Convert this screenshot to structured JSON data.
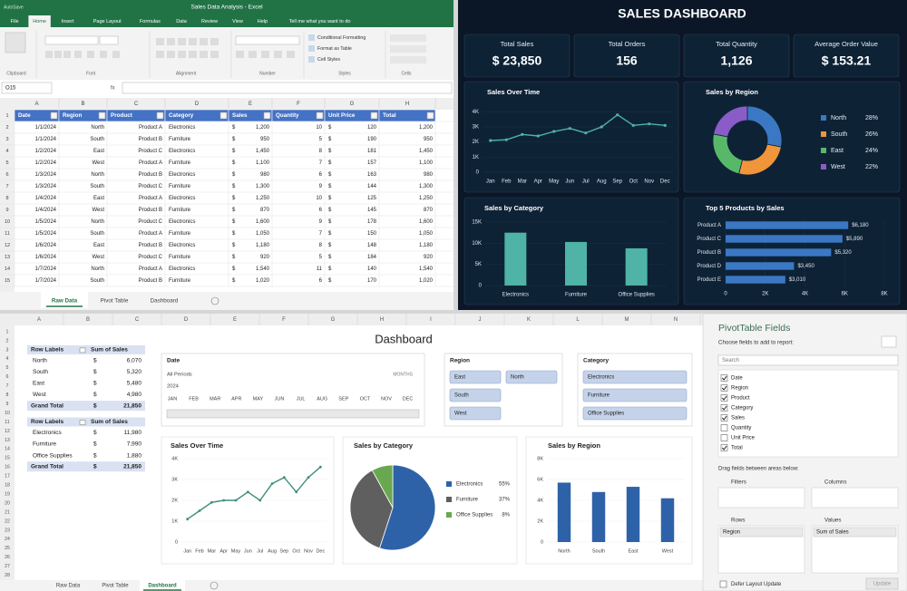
{
  "excel": {
    "title": "Sales Data Analysis - Excel",
    "autosave": "AutoSave",
    "tabs": [
      "File",
      "Home",
      "Insert",
      "Page Layout",
      "Formulas",
      "Data",
      "Review",
      "View",
      "Help"
    ],
    "tell_me": "Tell me what you want to do",
    "ribbon_groups": [
      "Clipboard",
      "Font",
      "Alignment",
      "Number",
      "Styles",
      "Cells"
    ],
    "styles_buttons": [
      "Conditional Formatting",
      "Format as Table",
      "Cell Styles"
    ],
    "name_box": "O15",
    "fx": "fx",
    "columns": [
      "A",
      "B",
      "C",
      "D",
      "E",
      "F",
      "G",
      "H"
    ],
    "row_numbers": [
      1,
      2,
      3,
      4,
      5,
      6,
      7,
      8,
      9,
      10,
      11,
      12,
      13,
      14,
      15
    ],
    "currency": "$",
    "headers": [
      "Date",
      "Region",
      "Product",
      "Category",
      "Sales",
      "Quantity",
      "Unit Price",
      "Total"
    ],
    "rows": [
      [
        "1/1/2024",
        "North",
        "Product A",
        "Electronics",
        "1,200",
        "10",
        "120",
        "1,200"
      ],
      [
        "1/1/2024",
        "South",
        "Product B",
        "Furniture",
        "950",
        "5",
        "190",
        "950"
      ],
      [
        "1/2/2024",
        "East",
        "Product C",
        "Electronics",
        "1,450",
        "8",
        "181",
        "1,450"
      ],
      [
        "1/2/2024",
        "West",
        "Product A",
        "Furniture",
        "1,100",
        "7",
        "157",
        "1,100"
      ],
      [
        "1/3/2024",
        "North",
        "Product B",
        "Electronics",
        "980",
        "6",
        "163",
        "980"
      ],
      [
        "1/3/2024",
        "South",
        "Product C",
        "Furniture",
        "1,300",
        "9",
        "144",
        "1,300"
      ],
      [
        "1/4/2024",
        "East",
        "Product A",
        "Electronics",
        "1,250",
        "10",
        "125",
        "1,250"
      ],
      [
        "1/4/2024",
        "West",
        "Product B",
        "Furniture",
        "870",
        "6",
        "145",
        "870"
      ],
      [
        "1/5/2024",
        "North",
        "Product C",
        "Electronics",
        "1,600",
        "9",
        "178",
        "1,600"
      ],
      [
        "1/5/2024",
        "South",
        "Product A",
        "Furniture",
        "1,050",
        "7",
        "150",
        "1,050"
      ],
      [
        "1/6/2024",
        "East",
        "Product B",
        "Electronics",
        "1,180",
        "8",
        "148",
        "1,180"
      ],
      [
        "1/6/2024",
        "West",
        "Product C",
        "Furniture",
        "920",
        "5",
        "184",
        "920"
      ],
      [
        "1/7/2024",
        "North",
        "Product A",
        "Electronics",
        "1,540",
        "11",
        "140",
        "1,540"
      ],
      [
        "1/7/2024",
        "South",
        "Product B",
        "Furniture",
        "1,020",
        "6",
        "170",
        "1,020"
      ]
    ],
    "sheet_tabs": [
      "Raw Data",
      "Pivot Table",
      "Dashboard"
    ]
  },
  "sales_dashboard": {
    "title": "SALES DASHBOARD",
    "kpis": [
      {
        "label": "Total Sales",
        "value": "$ 23,850"
      },
      {
        "label": "Total Orders",
        "value": "156"
      },
      {
        "label": "Total Quantity",
        "value": "1,126"
      },
      {
        "label": "Average Order Value",
        "value": "$ 153.21"
      }
    ],
    "sales_over_time": {
      "type": "line",
      "title": "Sales Over Time",
      "categories": [
        "Jan",
        "Feb",
        "Mar",
        "Apr",
        "May",
        "Jun",
        "Jul",
        "Aug",
        "Sep",
        "Oct",
        "Nov",
        "Dec"
      ],
      "values": [
        2100,
        2150,
        2500,
        2400,
        2700,
        2900,
        2600,
        3000,
        3800,
        3100,
        3200,
        3100
      ],
      "color": "#4fb3a7",
      "ylim": [
        0,
        4500
      ],
      "yticks": [
        0,
        {
          "value": 1000,
          "label": "1K"
        },
        {
          "value": 2000,
          "label": "2K"
        },
        {
          "value": 3000,
          "label": "3K"
        },
        {
          "value": 4000,
          "label": "4K"
        }
      ]
    },
    "sales_by_region": {
      "type": "donut",
      "title": "Sales by Region",
      "categories": [
        "North",
        "South",
        "East",
        "West"
      ],
      "values": [
        28,
        26,
        24,
        22
      ],
      "value_labels": [
        "28%",
        "26%",
        "24%",
        "22%"
      ],
      "colors": [
        "#3b78c4",
        "#f0953a",
        "#58b86a",
        "#8a5cc8"
      ]
    },
    "sales_by_category": {
      "type": "bar",
      "title": "Sales by Category",
      "categories": [
        "Electronics",
        "Furniture",
        "Office Supplies"
      ],
      "values": [
        12500,
        10300,
        8800
      ],
      "color": "#4fb3a7",
      "ylim": [
        0,
        15000
      ],
      "yticks": [
        0,
        {
          "value": 5000,
          "label": "5K"
        },
        {
          "value": 10000,
          "label": "10K"
        },
        {
          "value": 15000,
          "label": "15K"
        }
      ]
    },
    "top_products": {
      "type": "hbar",
      "title": "Top 5 Products by Sales",
      "categories": [
        "Product A",
        "Product C",
        "Product B",
        "Product D",
        "Product E"
      ],
      "values": [
        6180,
        5890,
        5320,
        3450,
        3010
      ],
      "value_labels": [
        "$6,180",
        "$5,890",
        "$5,320",
        "$3,450",
        "$3,010"
      ],
      "color": "#3b78c4",
      "xlim": [
        0,
        8000
      ],
      "xticks": [
        0,
        {
          "value": 2000,
          "label": "2K"
        },
        {
          "value": 4000,
          "label": "4K"
        },
        {
          "value": 6000,
          "label": "6K"
        },
        {
          "value": 8000,
          "label": "8K"
        }
      ]
    }
  },
  "dashboard": {
    "columns": [
      "A",
      "B",
      "C",
      "D",
      "E",
      "F",
      "G",
      "H",
      "I",
      "J",
      "K",
      "L",
      "M",
      "N"
    ],
    "row_numbers": [
      1,
      2,
      3,
      4,
      5,
      6,
      7,
      8,
      9,
      10,
      11,
      12,
      13,
      14,
      15,
      16,
      17,
      18,
      19,
      20,
      21,
      22,
      23,
      24,
      25,
      26,
      27,
      28
    ],
    "title": "Dashboard",
    "currency": "$",
    "pivot_region": {
      "start_row": 3,
      "headers": [
        "Row Labels",
        "Sum of Sales"
      ],
      "rows": [
        [
          "North",
          "6,070"
        ],
        [
          "South",
          "5,320"
        ],
        [
          "East",
          "5,480"
        ],
        [
          "West",
          "4,980"
        ]
      ],
      "total": [
        "Grand Total",
        "21,850"
      ]
    },
    "pivot_category": {
      "start_row": 11,
      "headers": [
        "Row Labels",
        "Sum of Sales"
      ],
      "rows": [
        [
          "Electronics",
          "11,980"
        ],
        [
          "Furniture",
          "7,990"
        ],
        [
          "Office Supplies",
          "1,880"
        ]
      ],
      "total": [
        "Grand Total",
        "21,850"
      ]
    },
    "timeline": {
      "title": "Date",
      "period": "All Periods",
      "unit": "MONTHS",
      "year": "2024",
      "months": [
        "JAN",
        "FEB",
        "MAR",
        "APR",
        "MAY",
        "JUN",
        "JUL",
        "AUG",
        "SEP",
        "OCT",
        "NOV",
        "DEC"
      ]
    },
    "region_slicer": {
      "title": "Region",
      "items": [
        "East",
        "North",
        "South",
        "West"
      ]
    },
    "category_slicer": {
      "title": "Category",
      "items": [
        "Electronics",
        "Furniture",
        "Office Supplies"
      ]
    },
    "sales_over_time": {
      "type": "line",
      "title": "Sales Over Time",
      "categories": [
        "Jan",
        "Feb",
        "Mar",
        "Apr",
        "May",
        "Jun",
        "Jul",
        "Aug",
        "Sep",
        "Oct",
        "Nov",
        "Dec"
      ],
      "values": [
        1100,
        1500,
        1900,
        2000,
        2000,
        2400,
        2000,
        2800,
        3100,
        2400,
        3100,
        3600
      ],
      "color": "#3e8e7e",
      "ylim": [
        0,
        4000
      ],
      "yticks": [
        0,
        {
          "value": 1000,
          "label": "1K"
        },
        {
          "value": 2000,
          "label": "2K"
        },
        {
          "value": 3000,
          "label": "3K"
        },
        {
          "value": 4000,
          "label": "4K"
        }
      ]
    },
    "sales_by_category": {
      "type": "pie",
      "title": "Sales by Category",
      "categories": [
        "Electronics",
        "Furniture",
        "Office Supplies"
      ],
      "values": [
        55,
        37,
        8
      ],
      "value_labels": [
        "55%",
        "37%",
        "8%"
      ],
      "colors": [
        "#2e62a8",
        "#5f5f5f",
        "#6aa84f"
      ]
    },
    "sales_by_region": {
      "type": "bar",
      "title": "Sales by Region",
      "categories": [
        "North",
        "South",
        "East",
        "West"
      ],
      "values": [
        5700,
        4800,
        5300,
        4200
      ],
      "color": "#2e62a8",
      "ylim": [
        0,
        8000
      ],
      "yticks": [
        0,
        {
          "value": 2000,
          "label": "2K"
        },
        {
          "value": 4000,
          "label": "4K"
        },
        {
          "value": 6000,
          "label": "6K"
        },
        {
          "value": 8000,
          "label": "8K"
        }
      ]
    },
    "sheet_tabs": [
      "Raw Data",
      "Pivot Table",
      "Dashboard"
    ]
  },
  "pivot_fields": {
    "title": "PivotTable Fields",
    "subtitle": "Choose fields to add to report:",
    "search": "Search",
    "fields": [
      {
        "name": "Date",
        "checked": true
      },
      {
        "name": "Region",
        "checked": true
      },
      {
        "name": "Product",
        "checked": true
      },
      {
        "name": "Category",
        "checked": true
      },
      {
        "name": "Sales",
        "checked": true
      },
      {
        "name": "Quantity",
        "checked": false
      },
      {
        "name": "Unit Price",
        "checked": false
      },
      {
        "name": "Total",
        "checked": true
      }
    ],
    "drag_hint": "Drag fields between areas below:",
    "areas": {
      "filters": {
        "label": "Filters"
      },
      "columns": {
        "label": "Columns"
      },
      "rows": {
        "label": "Rows",
        "item": "Region"
      },
      "values": {
        "label": "Values",
        "item": "Sum of Sales"
      }
    },
    "defer": "Defer Layout Update",
    "update": "Update"
  }
}
